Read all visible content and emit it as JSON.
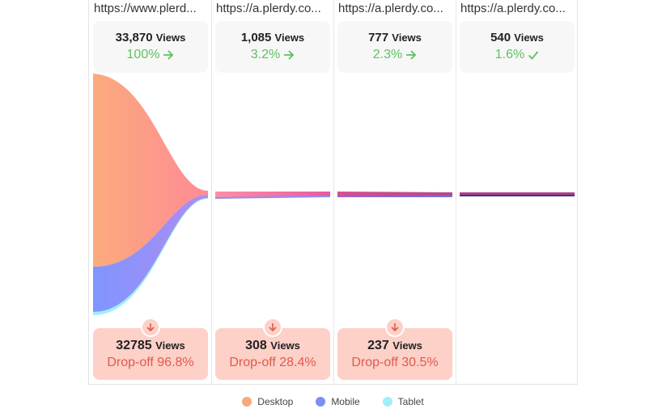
{
  "steps": [
    {
      "url": "https://www.plerd...",
      "views": "33,870",
      "views_unit": "Views",
      "percent": "100%",
      "icon": "arrow-right-icon"
    },
    {
      "url": "https://a.plerdy.co...",
      "views": "1,085",
      "views_unit": "Views",
      "percent": "3.2%",
      "icon": "arrow-right-icon"
    },
    {
      "url": "https://a.plerdy.co...",
      "views": "777",
      "views_unit": "Views",
      "percent": "2.3%",
      "icon": "arrow-right-icon"
    },
    {
      "url": "https://a.plerdy.co...",
      "views": "540",
      "views_unit": "Views",
      "percent": "1.6%",
      "icon": "check-icon"
    }
  ],
  "dropoffs": [
    {
      "views": "32785",
      "views_unit": "Views",
      "label": "Drop-off 96.8%"
    },
    {
      "views": "308",
      "views_unit": "Views",
      "label": "Drop-off 28.4%"
    },
    {
      "views": "237",
      "views_unit": "Views",
      "label": "Drop-off 30.5%"
    }
  ],
  "legend": [
    {
      "label": "Desktop",
      "color": "#f9a87a"
    },
    {
      "label": "Mobile",
      "color": "#7b8ff5"
    },
    {
      "label": "Tablet",
      "color": "#9ef0f5"
    }
  ],
  "colors": {
    "success": "#5dc25d",
    "dropoff_bg": "#fdd0c8",
    "dropoff_text": "#e05a4a",
    "desktop_flow": "#f9a87a",
    "desktop_flow_end": "#ff8a95",
    "mobile_flow": "#8a8ff5",
    "tablet_flow": "#9ef0f5"
  }
}
